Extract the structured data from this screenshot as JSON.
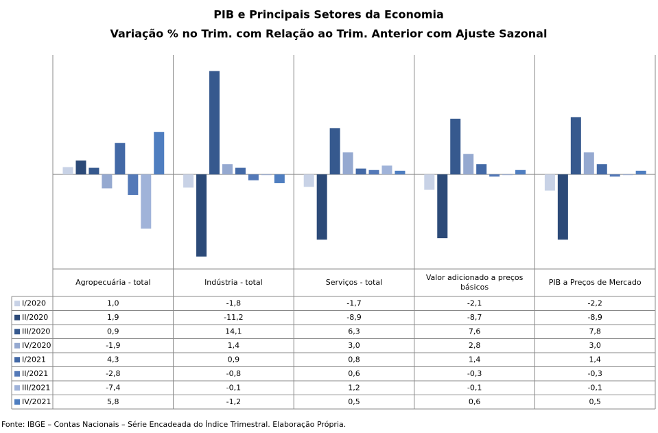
{
  "chart_data": {
    "type": "bar",
    "title": "PIB e Principais  Setores da Economia",
    "subtitle": "Variação % no Trim. com Relação ao Trim. Anterior com Ajuste Sazonal",
    "categories": [
      "Agropecuária - total",
      "Indústria - total",
      "Serviços - total",
      "Valor adicionado a preços básicos",
      "PIB a Preços de Mercado"
    ],
    "ylim": [
      -12.9,
      16.3
    ],
    "series": [
      {
        "name": "I/2020",
        "color": "#c8d2e6",
        "values": [
          1.0,
          -1.8,
          -1.7,
          -2.1,
          -2.2
        ],
        "value_labels": [
          "1,0",
          "-1,8",
          "-1,7",
          "-2,1",
          "-2,2"
        ]
      },
      {
        "name": "II/2020",
        "color": "#2c4a78",
        "values": [
          1.9,
          -11.2,
          -8.9,
          -8.7,
          -8.9
        ],
        "value_labels": [
          "1,9",
          "-11,2",
          "-8,9",
          "-8,7",
          "-8,9"
        ]
      },
      {
        "name": "III/2020",
        "color": "#36598e",
        "values": [
          0.9,
          14.1,
          6.3,
          7.6,
          7.8
        ],
        "value_labels": [
          "0,9",
          "14,1",
          "6,3",
          "7,6",
          "7,8"
        ]
      },
      {
        "name": "IV/2020",
        "color": "#95a9d0",
        "values": [
          -1.9,
          1.4,
          3.0,
          2.8,
          3.0
        ],
        "value_labels": [
          "-1,9",
          "1,4",
          "3,0",
          "2,8",
          "3,0"
        ]
      },
      {
        "name": "I/2021",
        "color": "#4369a6",
        "values": [
          4.3,
          0.9,
          0.8,
          1.4,
          1.4
        ],
        "value_labels": [
          "4,3",
          "0,9",
          "0,8",
          "1,4",
          "1,4"
        ]
      },
      {
        "name": "II/2021",
        "color": "#5479b8",
        "values": [
          -2.8,
          -0.8,
          0.6,
          -0.3,
          -0.3
        ],
        "value_labels": [
          "-2,8",
          "-0,8",
          "0,6",
          "-0,3",
          "-0,3"
        ]
      },
      {
        "name": "III/2021",
        "color": "#a0b3d9",
        "values": [
          -7.4,
          -0.1,
          1.2,
          -0.1,
          -0.1
        ],
        "value_labels": [
          "-7,4",
          "-0,1",
          "1,2",
          "-0,1",
          "-0,1"
        ]
      },
      {
        "name": "IV/2021",
        "color": "#4f7ec0",
        "values": [
          5.8,
          -1.2,
          0.5,
          0.6,
          0.5
        ],
        "value_labels": [
          "5,8",
          "-1,2",
          "0,5",
          "0,6",
          "0,5"
        ]
      }
    ],
    "source": "Fonte: IBGE – Contas Nacionais – Série Encadeada do Índice Trimestral. Elaboração Própria."
  }
}
